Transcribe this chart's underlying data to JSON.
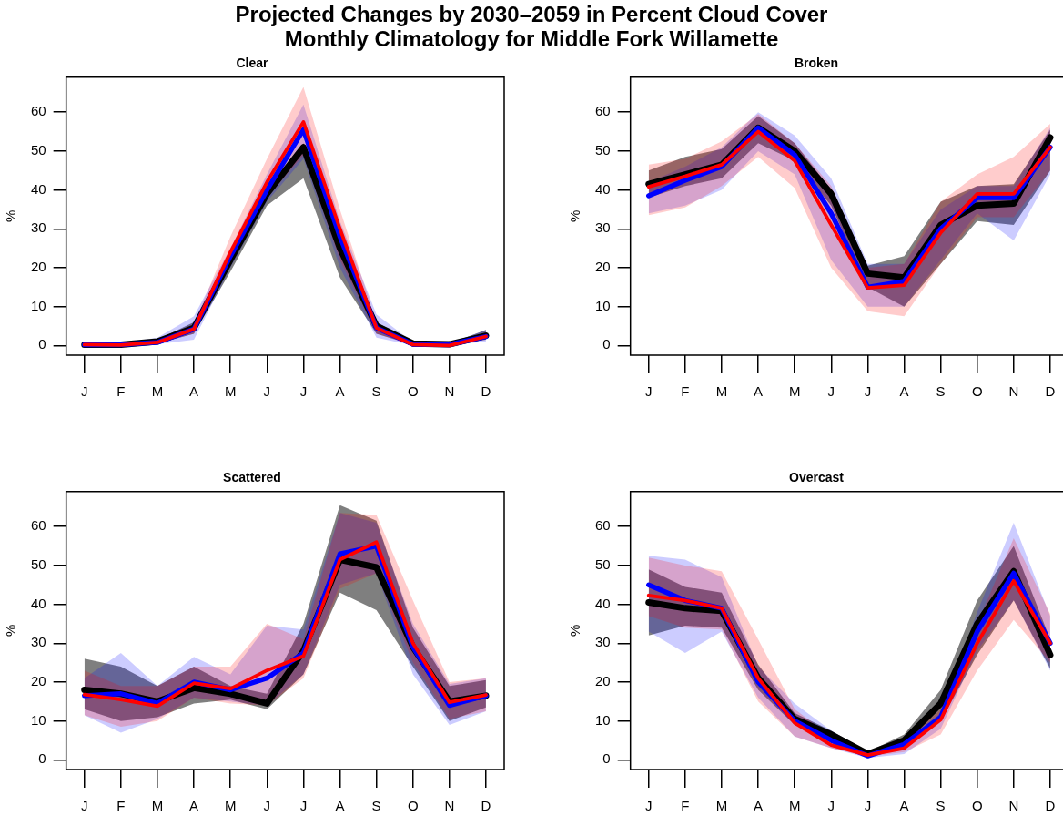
{
  "chart_data": [
    {
      "type": "other",
      "title": "Projected Changes by 2030–2059 in Percent Cloud Cover",
      "subtitle": "Monthly Climatology for Middle Fork Willamette"
    },
    {
      "type": "line",
      "title": "Clear",
      "ylabel": "%",
      "categories": [
        "J",
        "F",
        "M",
        "A",
        "M",
        "J",
        "J",
        "A",
        "S",
        "O",
        "N",
        "D"
      ],
      "ylim": [
        -2.5,
        69
      ],
      "yticks": [
        0,
        10,
        20,
        30,
        40,
        50,
        60
      ],
      "series": [
        {
          "color": "#000000",
          "values": [
            0.2,
            0.2,
            1,
            4.5,
            22,
            39,
            51,
            25,
            5,
            0.5,
            0.3,
            2.5
          ],
          "lower": [
            0,
            0,
            0.5,
            3,
            19,
            36,
            43,
            17.5,
            3,
            0.2,
            0,
            1.5
          ],
          "upper": [
            0.5,
            0.5,
            1.5,
            6,
            23,
            40,
            52,
            28,
            6,
            0.8,
            0.5,
            4
          ]
        },
        {
          "color": "#0000ff",
          "values": [
            0.2,
            0.2,
            0.8,
            4.2,
            23,
            40,
            55.5,
            28,
            4.5,
            0.3,
            0.2,
            2.3
          ],
          "lower": [
            0,
            0,
            0.3,
            1.5,
            20,
            37,
            48,
            20,
            2,
            0,
            0,
            1
          ],
          "upper": [
            0.6,
            0.6,
            2,
            7.5,
            25,
            44,
            62,
            32,
            8,
            0.8,
            0.5,
            4
          ]
        },
        {
          "color": "#ff0000",
          "values": [
            0.2,
            0.1,
            0.8,
            4.2,
            24,
            42,
            57.5,
            30,
            4.5,
            0.2,
            0,
            2.3
          ],
          "lower": [
            0,
            0,
            0.5,
            3,
            21,
            38,
            49,
            22,
            3,
            0,
            0,
            1.5
          ],
          "upper": [
            0.5,
            0.5,
            1.5,
            5.5,
            28,
            48,
            66.5,
            35,
            6,
            0.5,
            0.3,
            3.5
          ]
        }
      ]
    },
    {
      "type": "line",
      "title": "Broken",
      "ylabel": "%",
      "categories": [
        "J",
        "F",
        "M",
        "A",
        "M",
        "J",
        "J",
        "A",
        "S",
        "O",
        "N",
        "D"
      ],
      "ylim": [
        -2.5,
        69
      ],
      "yticks": [
        0,
        10,
        20,
        30,
        40,
        50,
        60
      ],
      "series": [
        {
          "color": "#000000",
          "values": [
            41.5,
            44,
            46.5,
            56,
            50,
            39,
            18.5,
            17.5,
            31,
            36,
            36.5,
            53.5
          ],
          "lower": [
            38,
            41,
            43,
            52,
            47.5,
            36,
            15,
            10,
            21,
            32,
            31,
            45
          ],
          "upper": [
            45,
            48.5,
            50.5,
            59,
            52,
            40,
            20.5,
            23,
            37,
            41,
            41.5,
            55.5
          ]
        },
        {
          "color": "#0000ff",
          "values": [
            38.5,
            42.5,
            46,
            56,
            49,
            34,
            15,
            16.5,
            30,
            38,
            38,
            51
          ],
          "lower": [
            34,
            36,
            40,
            50,
            44,
            22,
            10,
            10,
            22,
            34,
            27,
            44
          ],
          "upper": [
            42,
            46,
            51,
            60,
            54,
            43,
            21,
            21,
            35,
            41,
            41,
            56
          ]
        },
        {
          "color": "#ff0000",
          "values": [
            40.8,
            43.5,
            46.5,
            55,
            47.5,
            31,
            14.8,
            15.5,
            29,
            39,
            39,
            51
          ],
          "lower": [
            33.5,
            35.5,
            41,
            48.5,
            40.5,
            20,
            8.8,
            7.5,
            21,
            33,
            33,
            45
          ],
          "upper": [
            46.5,
            48,
            52.5,
            59.5,
            52,
            41,
            20,
            21,
            37,
            44,
            48.5,
            57
          ]
        }
      ]
    },
    {
      "type": "line",
      "title": "Scattered",
      "ylabel": "%",
      "categories": [
        "J",
        "F",
        "M",
        "A",
        "M",
        "J",
        "J",
        "A",
        "S",
        "O",
        "N",
        "D"
      ],
      "ylim": [
        -2.5,
        69
      ],
      "yticks": [
        0,
        10,
        20,
        30,
        40,
        50,
        60
      ],
      "series": [
        {
          "color": "#000000",
          "values": [
            18,
            17,
            15,
            18.5,
            17,
            14.5,
            28,
            51.5,
            49.5,
            29,
            15,
            16.5
          ],
          "lower": [
            13,
            10,
            11,
            14.5,
            15.5,
            13,
            22,
            43,
            38.5,
            24,
            10,
            13.5
          ],
          "upper": [
            26,
            24,
            19,
            24,
            19,
            17,
            35,
            65.5,
            61.5,
            34,
            19,
            20.5
          ]
        },
        {
          "color": "#0000ff",
          "values": [
            16.5,
            17,
            14.5,
            20,
            18,
            21,
            27.5,
            53,
            55,
            29,
            14,
            16.5
          ],
          "lower": [
            11.5,
            7,
            10.5,
            16,
            15,
            14,
            22,
            45,
            48,
            22,
            9,
            12.5
          ],
          "upper": [
            21,
            27.5,
            19,
            26.5,
            22,
            34.5,
            33.5,
            63.5,
            61,
            35,
            19.5,
            21
          ]
        },
        {
          "color": "#ff0000",
          "values": [
            16.8,
            15.5,
            13.8,
            19.7,
            18.3,
            23,
            26.7,
            51.5,
            56,
            30,
            14.8,
            16.7
          ],
          "lower": [
            11.5,
            8.5,
            10,
            16,
            14.5,
            14,
            21,
            44,
            48,
            25,
            10.5,
            12.5
          ],
          "upper": [
            23,
            19,
            19,
            24,
            24,
            35,
            31,
            63.5,
            63,
            41,
            20,
            21
          ]
        }
      ]
    },
    {
      "type": "line",
      "title": "Overcast",
      "ylabel": "%",
      "categories": [
        "J",
        "F",
        "M",
        "A",
        "M",
        "J",
        "J",
        "A",
        "S",
        "O",
        "N",
        "D"
      ],
      "ylim": [
        -2.5,
        69
      ],
      "yticks": [
        0,
        10,
        20,
        30,
        40,
        50,
        60
      ],
      "series": [
        {
          "color": "#000000",
          "values": [
            40.5,
            39,
            38.3,
            21,
            10.5,
            6.5,
            1.5,
            5,
            14.5,
            35,
            48.5,
            27
          ],
          "lower": [
            32,
            34.5,
            34,
            18,
            9,
            5,
            1.2,
            3,
            10,
            27,
            41,
            23.5
          ],
          "upper": [
            49,
            44.5,
            43,
            24.5,
            12,
            7.5,
            2,
            6.5,
            18,
            41,
            55,
            31
          ]
        },
        {
          "color": "#0000ff",
          "values": [
            45,
            41,
            39,
            20,
            10,
            5,
            1,
            4,
            11,
            33,
            48,
            30
          ],
          "lower": [
            33,
            27.5,
            33,
            16,
            6,
            3,
            0.5,
            1.5,
            8,
            28,
            41,
            23
          ],
          "upper": [
            52.5,
            51.5,
            47,
            24,
            14.5,
            7.5,
            2,
            5,
            12,
            38,
            61,
            37
          ]
        },
        {
          "color": "#ff0000",
          "values": [
            42.3,
            41,
            39,
            21,
            9.5,
            3.8,
            1.2,
            3,
            10.3,
            30,
            46,
            30
          ],
          "lower": [
            37,
            34,
            33.5,
            15,
            6,
            3,
            0.8,
            2,
            6.5,
            23,
            36,
            25
          ],
          "upper": [
            52,
            50,
            48.5,
            31,
            13,
            6,
            2,
            5,
            13,
            35,
            57,
            37.5
          ]
        }
      ]
    }
  ]
}
